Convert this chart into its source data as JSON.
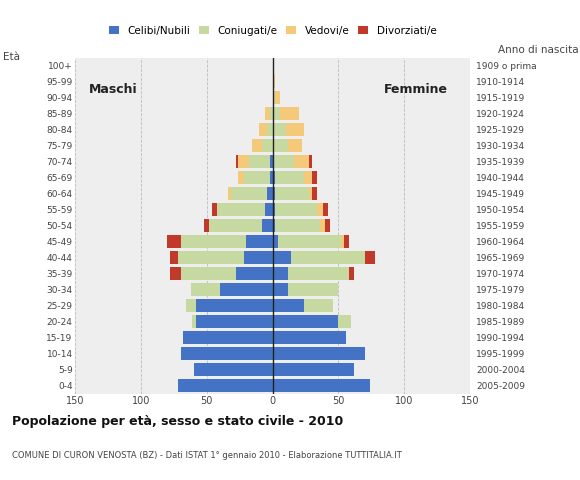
{
  "age_groups": [
    "0-4",
    "5-9",
    "10-14",
    "15-19",
    "20-24",
    "25-29",
    "30-34",
    "35-39",
    "40-44",
    "45-49",
    "50-54",
    "55-59",
    "60-64",
    "65-69",
    "70-74",
    "75-79",
    "80-84",
    "85-89",
    "90-94",
    "95-99",
    "100+"
  ],
  "birth_years": [
    "2005-2009",
    "2000-2004",
    "1995-1999",
    "1990-1994",
    "1985-1989",
    "1980-1984",
    "1975-1979",
    "1970-1974",
    "1965-1969",
    "1960-1964",
    "1955-1959",
    "1950-1954",
    "1945-1949",
    "1940-1944",
    "1935-1939",
    "1930-1934",
    "1925-1929",
    "1920-1924",
    "1915-1919",
    "1910-1914",
    "1909 o prima"
  ],
  "colors": {
    "celibe": "#4472c4",
    "coniugato": "#c5d9a0",
    "vedovo": "#f5c97a",
    "divorziato": "#c0392b"
  },
  "maschi": {
    "celibe": [
      72,
      60,
      70,
      68,
      58,
      58,
      40,
      28,
      22,
      20,
      8,
      6,
      4,
      2,
      2,
      0,
      0,
      0,
      0,
      0,
      0
    ],
    "coniugato": [
      0,
      0,
      0,
      0,
      3,
      8,
      22,
      42,
      50,
      50,
      40,
      36,
      28,
      20,
      16,
      8,
      4,
      2,
      0,
      0,
      0
    ],
    "vedovo": [
      0,
      0,
      0,
      0,
      0,
      0,
      0,
      0,
      0,
      0,
      0,
      0,
      2,
      4,
      8,
      8,
      6,
      4,
      0,
      0,
      0
    ],
    "divorziato": [
      0,
      0,
      0,
      0,
      0,
      0,
      0,
      8,
      6,
      10,
      4,
      4,
      0,
      0,
      2,
      0,
      0,
      0,
      0,
      0,
      0
    ]
  },
  "femmine": {
    "nubile": [
      74,
      62,
      70,
      56,
      50,
      24,
      12,
      12,
      14,
      4,
      2,
      2,
      2,
      2,
      0,
      0,
      0,
      0,
      0,
      0,
      0
    ],
    "coniugata": [
      0,
      0,
      0,
      0,
      10,
      22,
      38,
      46,
      56,
      48,
      34,
      32,
      26,
      22,
      16,
      12,
      10,
      6,
      2,
      0,
      0
    ],
    "vedova": [
      0,
      0,
      0,
      0,
      0,
      0,
      0,
      0,
      0,
      2,
      4,
      4,
      2,
      6,
      12,
      10,
      14,
      14,
      4,
      2,
      0
    ],
    "divorziata": [
      0,
      0,
      0,
      0,
      0,
      0,
      0,
      4,
      8,
      4,
      4,
      4,
      4,
      4,
      2,
      0,
      0,
      0,
      0,
      0,
      0
    ]
  },
  "xlim": 150,
  "title": "Popolazione per età, sesso e stato civile - 2010",
  "subtitle": "COMUNE DI CURON VENOSTA (BZ) - Dati ISTAT 1° gennaio 2010 - Elaborazione TUTTITALIA.IT",
  "bg_color": "#ffffff",
  "plot_bg": "#eeeeee",
  "grid_color": "#bbbbbb"
}
